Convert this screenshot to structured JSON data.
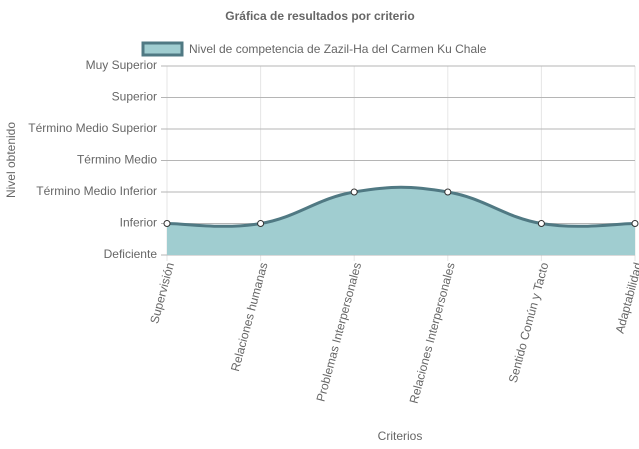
{
  "chart_data": {
    "type": "line",
    "title": "Gráfica de resultados por criterio",
    "x_label": "Criterios",
    "y_label": "Nivel obtenido",
    "categories": [
      "Supervisión",
      "Relaciones humanas",
      "Problemas Interpersonales",
      "Relaciones Interpersonales",
      "Sentido Común y Tacto",
      "Adaptabilidad"
    ],
    "series": [
      {
        "name": "Nivel de competencia de Zazil-Ha del Carmen Ku Chale",
        "color": "#507983",
        "fill": "#a0cdd0",
        "values": [
          1,
          1,
          2,
          2,
          1,
          1
        ]
      }
    ],
    "ylim": [
      0,
      6
    ],
    "yticks": [
      {
        "value": 0,
        "label": "Deficiente"
      },
      {
        "value": 1,
        "label": "Inferior"
      },
      {
        "value": 2,
        "label": "Término Medio Inferior"
      },
      {
        "value": 3,
        "label": "Término Medio"
      },
      {
        "value": 4,
        "label": "Término Medio Superior"
      },
      {
        "value": 5,
        "label": "Superior"
      },
      {
        "value": 6,
        "label": "Muy Superior"
      }
    ],
    "grid": true,
    "legend": "top"
  }
}
